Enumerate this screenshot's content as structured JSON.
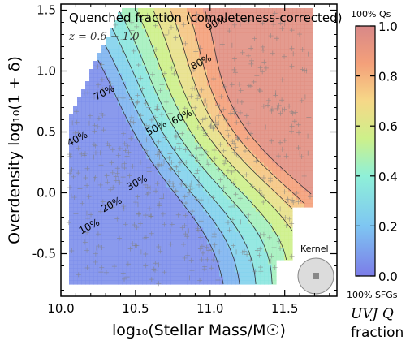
{
  "chart_data": {
    "type": "heatmap",
    "title": "Quenched fraction (completeness-corrected)",
    "subtitle": "z = 0.6 − 1.0",
    "xlabel": "log₁₀(Stellar Mass/M☉)",
    "ylabel": "Overdensity log₁₀(1 + δ)",
    "xlim": [
      10.0,
      11.85
    ],
    "ylim": [
      -0.85,
      1.55
    ],
    "x_ticks": [
      10.0,
      10.5,
      11.0,
      11.5
    ],
    "x_tick_labels": [
      "10.0",
      "10.5",
      "11.0",
      "11.5"
    ],
    "y_ticks": [
      -0.5,
      0.0,
      0.5,
      1.0,
      1.5
    ],
    "y_tick_labels": [
      "-0.5",
      "0.0",
      "0.5",
      "1.0",
      "1.5"
    ],
    "contour_levels": [
      0.1,
      0.2,
      0.3,
      0.4,
      0.5,
      0.6,
      0.7,
      0.8,
      0.9
    ],
    "contour_labels": [
      {
        "text": "10%",
        "level": 0.1,
        "x": 10.2,
        "y": -0.3
      },
      {
        "text": "20%",
        "level": 0.2,
        "x": 10.35,
        "y": -0.12
      },
      {
        "text": "30%",
        "level": 0.3,
        "x": 10.52,
        "y": 0.06
      },
      {
        "text": "40%",
        "level": 0.4,
        "x": 10.12,
        "y": 0.42
      },
      {
        "text": "50%",
        "level": 0.5,
        "x": 10.65,
        "y": 0.51
      },
      {
        "text": "60%",
        "level": 0.6,
        "x": 10.82,
        "y": 0.6
      },
      {
        "text": "70%",
        "level": 0.7,
        "x": 10.3,
        "y": 0.8
      },
      {
        "text": "80%",
        "level": 0.8,
        "x": 10.95,
        "y": 1.05
      },
      {
        "text": "90%",
        "level": 0.9,
        "x": 11.05,
        "y": 1.37
      }
    ],
    "colorbar": {
      "label_line1": "UVJ Q",
      "label_line2": "fraction",
      "top_label": "100% Qs",
      "bottom_label": "100% SFGs",
      "range": [
        0.0,
        1.0
      ],
      "ticks": [
        0.0,
        0.2,
        0.4,
        0.6,
        0.8,
        1.0
      ],
      "tick_labels": [
        "0.0",
        "0.2",
        "0.4",
        "0.6",
        "0.8",
        "1.0"
      ]
    },
    "kernel_label": "Kernel",
    "grid": false,
    "colors": {
      "low": "#7f7fe8",
      "mid": "#c8f07a",
      "high": "#e08a8a",
      "points": "#808080"
    }
  }
}
